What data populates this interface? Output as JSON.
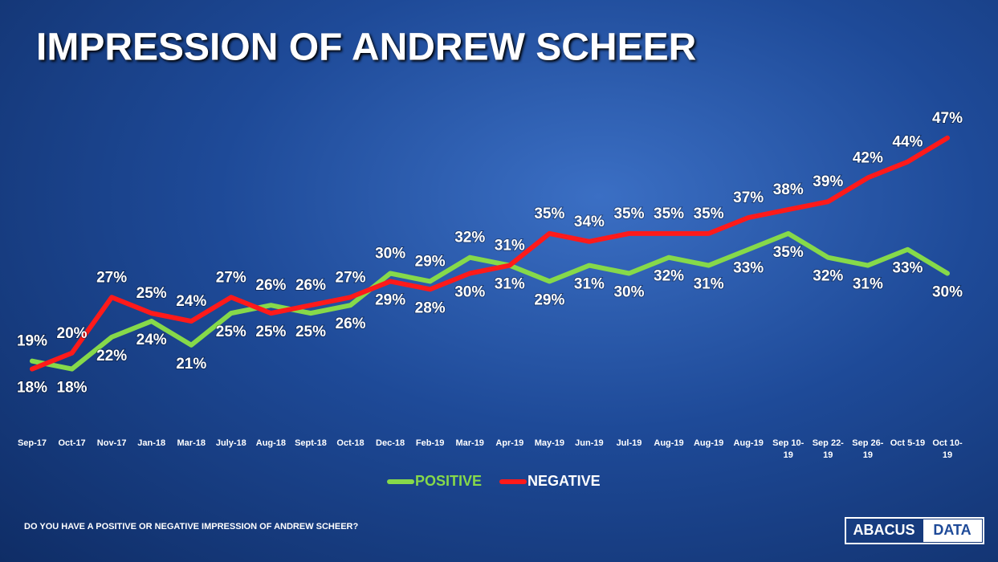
{
  "chart_data": {
    "type": "line",
    "title": "IMPRESSION OF ANDREW SCHEER",
    "note": "DO YOU HAVE A POSITIVE OR NEGATIVE IMPRESSION OF ANDREW SCHEER?",
    "logo": {
      "left": "ABACUS",
      "right": "DATA"
    },
    "categories": [
      "Sep-17",
      "Oct-17",
      "Nov-17",
      "Jan-18",
      "Mar-18",
      "July-18",
      "Aug-18",
      "Sept-18",
      "Oct-18",
      "Dec-18",
      "Feb-19",
      "Mar-19",
      "Apr-19",
      "May-19",
      "Jun-19",
      "Jul-19",
      "Aug-19",
      "Aug-19",
      "Aug-19",
      "Sep 10-19",
      "Sep 22-19",
      "Sep 26-19",
      "Oct 5-19",
      "Oct 10-19"
    ],
    "series": [
      {
        "name": "POSITIVE",
        "color": "#86d94a",
        "values": [
          19,
          18,
          22,
          24,
          21,
          25,
          26,
          25,
          26,
          30,
          29,
          32,
          31,
          29,
          31,
          30,
          32,
          31,
          33,
          35,
          32,
          31,
          33,
          30
        ],
        "value_labels": [
          "19%",
          "18%",
          "22%",
          "24%",
          "21%",
          "25%",
          "26%",
          "25%",
          "26%",
          "30%",
          "29%",
          "32%",
          "31%",
          "29%",
          "31%",
          "30%",
          "32%",
          "31%",
          "33%",
          "35%",
          "32%",
          "31%",
          "33%",
          "30%"
        ]
      },
      {
        "name": "NEGATIVE",
        "color": "#ff1a1a",
        "values": [
          18,
          20,
          27,
          25,
          24,
          27,
          25,
          26,
          27,
          29,
          28,
          30,
          31,
          35,
          34,
          35,
          35,
          35,
          37,
          38,
          39,
          42,
          44,
          47
        ],
        "value_labels": [
          "18%",
          "20%",
          "27%",
          "25%",
          "24%",
          "27%",
          "25%",
          "26%",
          "27%",
          "29%",
          "28%",
          "30%",
          "31%",
          "35%",
          "34%",
          "35%",
          "35%",
          "35%",
          "37%",
          "38%",
          "39%",
          "42%",
          "44%",
          "47%"
        ]
      }
    ],
    "ylim": [
      10,
      50
    ]
  }
}
